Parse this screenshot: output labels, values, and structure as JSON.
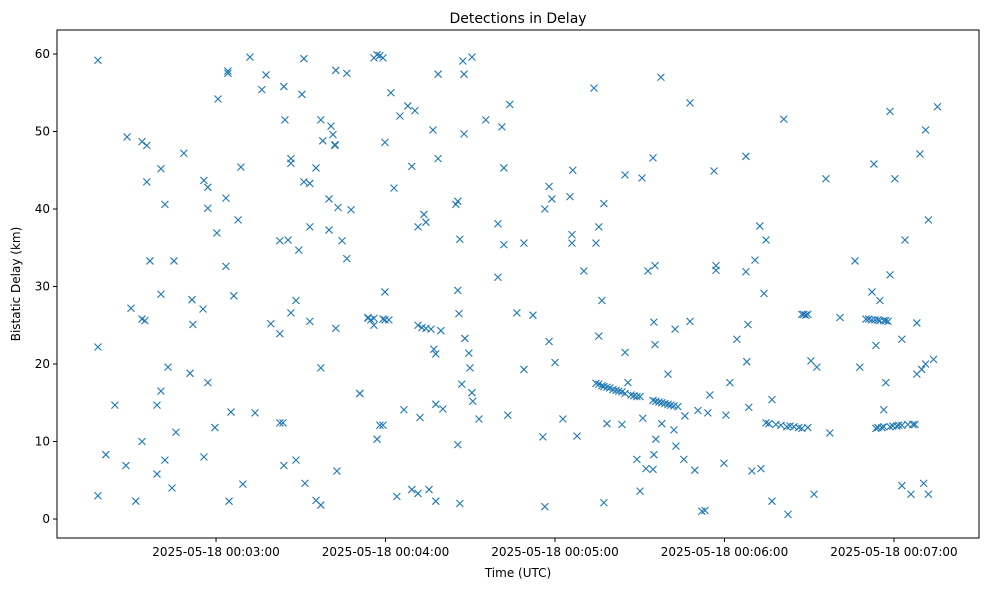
{
  "chart_data": {
    "type": "scatter",
    "title": "Detections in Delay",
    "xlabel": "Time (UTC)",
    "ylabel": "Bistatic Delay (km)",
    "x_units": "seconds after 2025-05-18 00:00:00 UTC",
    "xlim": [
      123.7,
      450.1
    ],
    "ylim": [
      -2.45,
      63.1
    ],
    "grid": false,
    "marker": "x",
    "color": "#1f77b4",
    "xticks": [
      {
        "value": 180,
        "label": "2025-05-18 00:03:00"
      },
      {
        "value": 240,
        "label": "2025-05-18 00:04:00"
      },
      {
        "value": 300,
        "label": "2025-05-18 00:05:00"
      },
      {
        "value": 360,
        "label": "2025-05-18 00:06:00"
      },
      {
        "value": 420,
        "label": "2025-05-18 00:07:00"
      }
    ],
    "yticks": [
      {
        "value": 0,
        "label": "0"
      },
      {
        "value": 10,
        "label": "10"
      },
      {
        "value": 20,
        "label": "20"
      },
      {
        "value": 30,
        "label": "30"
      },
      {
        "value": 40,
        "label": "40"
      },
      {
        "value": 50,
        "label": "50"
      },
      {
        "value": 60,
        "label": "60"
      }
    ],
    "groups": [
      [
        138.2,
        [
          22.2,
          3.0,
          59.2
        ]
      ],
      [
        141.0,
        [
          8.3
        ]
      ],
      [
        144.2,
        [
          14.7
        ]
      ],
      [
        148.1,
        [
          6.9
        ]
      ],
      [
        148.5,
        [
          49.3
        ]
      ],
      [
        149.9,
        [
          27.2
        ]
      ],
      [
        151.6,
        [
          2.3
        ]
      ],
      [
        153.8,
        [
          10.0,
          48.7,
          25.8
        ]
      ],
      [
        154.8,
        [
          25.6
        ]
      ],
      [
        155.5,
        [
          48.2,
          43.5
        ]
      ],
      [
        156.6,
        [
          33.3
        ]
      ],
      [
        159.1,
        [
          14.7,
          5.8
        ]
      ],
      [
        160.5,
        [
          45.2,
          29.0,
          16.5
        ]
      ],
      [
        161.9,
        [
          40.6,
          7.6
        ]
      ],
      [
        163.0,
        [
          19.6
        ]
      ],
      [
        164.4,
        [
          4.0
        ]
      ],
      [
        165.1,
        [
          33.3
        ]
      ],
      [
        165.8,
        [
          11.2
        ]
      ],
      [
        168.6,
        [
          47.2
        ]
      ],
      [
        170.8,
        [
          18.8
        ]
      ],
      [
        171.5,
        [
          28.3
        ]
      ],
      [
        171.8,
        [
          25.1
        ]
      ],
      [
        175.4,
        [
          27.1
        ]
      ],
      [
        175.7,
        [
          43.7,
          8.0
        ]
      ],
      [
        177.1,
        [
          40.1,
          42.8,
          17.6
        ]
      ],
      [
        179.6,
        [
          11.8
        ]
      ],
      [
        180.3,
        [
          36.9
        ]
      ],
      [
        180.7,
        [
          54.2
        ]
      ],
      [
        183.5,
        [
          32.6,
          41.4
        ]
      ],
      [
        184.2,
        [
          57.5,
          57.8
        ]
      ],
      [
        184.6,
        [
          2.3
        ]
      ],
      [
        185.3,
        [
          13.8
        ]
      ],
      [
        186.3,
        [
          28.8
        ]
      ],
      [
        187.8,
        [
          38.6
        ]
      ],
      [
        188.8,
        [
          45.4
        ]
      ],
      [
        189.5,
        [
          4.5
        ]
      ],
      [
        192.0,
        [
          59.6
        ]
      ],
      [
        193.8,
        [
          13.7
        ]
      ],
      [
        196.2,
        [
          55.4
        ]
      ],
      [
        197.7,
        [
          57.3
        ]
      ],
      [
        199.4,
        [
          25.2
        ]
      ],
      [
        202.6,
        [
          35.9,
          23.9,
          12.4
        ]
      ],
      [
        203.7,
        [
          12.4
        ]
      ],
      [
        204.0,
        [
          6.9,
          55.8
        ]
      ],
      [
        204.4,
        [
          51.5
        ]
      ],
      [
        205.5,
        [
          36.0
        ]
      ],
      [
        206.5,
        [
          46.5,
          45.9,
          26.6
        ]
      ],
      [
        208.3,
        [
          28.2,
          7.6
        ]
      ],
      [
        209.3,
        [
          34.7
        ]
      ],
      [
        210.4,
        [
          54.8
        ]
      ],
      [
        211.1,
        [
          59.4,
          43.5
        ]
      ],
      [
        211.5,
        [
          4.6
        ]
      ],
      [
        213.2,
        [
          43.3,
          37.7,
          25.5
        ]
      ],
      [
        215.4,
        [
          45.3,
          2.4
        ]
      ],
      [
        217.1,
        [
          51.5,
          19.5,
          1.8
        ]
      ],
      [
        217.8,
        [
          48.8
        ]
      ],
      [
        220.0,
        [
          41.3,
          37.3
        ]
      ],
      [
        220.7,
        [
          50.7
        ]
      ],
      [
        221.4,
        [
          49.6
        ]
      ],
      [
        222.1,
        [
          48.2,
          48.3
        ]
      ],
      [
        222.4,
        [
          24.6,
          57.9
        ]
      ],
      [
        222.8,
        [
          6.2
        ]
      ],
      [
        223.2,
        [
          40.2
        ]
      ],
      [
        224.6,
        [
          35.9
        ]
      ],
      [
        226.3,
        [
          33.6,
          57.5
        ]
      ],
      [
        227.8,
        [
          39.9
        ]
      ],
      [
        230.9,
        [
          16.2,
          16.2
        ]
      ],
      [
        233.8,
        [
          26.0,
          25.9
        ]
      ],
      [
        234.8,
        [
          25.7
        ]
      ],
      [
        235.9,
        [
          25.0,
          59.5,
          25.9
        ]
      ],
      [
        237.0,
        [
          10.3,
          59.9
        ]
      ],
      [
        238.0,
        [
          12.1,
          59.8
        ]
      ],
      [
        239.1,
        [
          59.5,
          12.1,
          25.8
        ]
      ],
      [
        239.8,
        [
          29.3,
          48.6,
          25.7
        ]
      ],
      [
        241.2,
        [
          25.7
        ]
      ],
      [
        241.9,
        [
          55.0
        ]
      ],
      [
        243.0,
        [
          42.7
        ]
      ],
      [
        244.0,
        [
          2.9
        ]
      ],
      [
        245.1,
        [
          52.0
        ]
      ],
      [
        246.5,
        [
          14.1
        ]
      ],
      [
        247.9,
        [
          53.3
        ]
      ],
      [
        249.3,
        [
          45.5,
          3.8
        ]
      ],
      [
        250.4,
        [
          52.7
        ]
      ],
      [
        251.5,
        [
          37.7,
          25.0,
          3.3
        ]
      ],
      [
        252.2,
        [
          13.1
        ]
      ],
      [
        252.9,
        [
          24.7
        ]
      ],
      [
        253.6,
        [
          39.3
        ]
      ],
      [
        254.3,
        [
          38.3,
          24.6
        ]
      ],
      [
        255.4,
        [
          3.8
        ]
      ],
      [
        256.1,
        [
          24.5
        ]
      ],
      [
        256.8,
        [
          50.2
        ]
      ],
      [
        257.1,
        [
          21.9
        ]
      ],
      [
        257.8,
        [
          21.3,
          14.8,
          2.3
        ]
      ],
      [
        258.6,
        [
          46.5,
          57.4
        ]
      ],
      [
        259.6,
        [
          24.3
        ]
      ],
      [
        260.3,
        [
          14.2
        ]
      ],
      [
        264.9,
        [
          40.6
        ]
      ],
      [
        265.6,
        [
          41.0,
          29.5,
          9.6
        ]
      ],
      [
        266.0,
        [
          26.5
        ]
      ],
      [
        266.3,
        [
          36.1,
          2.0
        ]
      ],
      [
        267.0,
        [
          17.4
        ]
      ],
      [
        267.4,
        [
          59.1
        ]
      ],
      [
        267.8,
        [
          57.4,
          49.7
        ]
      ],
      [
        268.1,
        [
          23.3
        ]
      ],
      [
        269.5,
        [
          21.4
        ]
      ],
      [
        269.9,
        [
          19.5
        ]
      ],
      [
        270.6,
        [
          59.6,
          16.3
        ]
      ],
      [
        270.9,
        [
          15.2
        ]
      ],
      [
        273.1,
        [
          12.9
        ]
      ],
      [
        275.5,
        [
          51.5
        ]
      ],
      [
        279.8,
        [
          31.2,
          38.1
        ]
      ],
      [
        281.2,
        [
          50.6
        ]
      ],
      [
        281.9,
        [
          45.3,
          35.4
        ]
      ],
      [
        283.3,
        [
          13.4
        ]
      ],
      [
        284.0,
        [
          53.5
        ]
      ],
      [
        286.5,
        [
          26.6
        ]
      ],
      [
        289.0,
        [
          19.3,
          35.6
        ]
      ],
      [
        292.2,
        [
          26.3
        ]
      ],
      [
        295.7,
        [
          10.6
        ]
      ],
      [
        296.4,
        [
          1.6,
          40.0
        ]
      ],
      [
        297.9,
        [
          42.9,
          22.9
        ]
      ],
      [
        298.9,
        [
          41.3
        ]
      ],
      [
        300.0,
        [
          20.2
        ]
      ],
      [
        302.8,
        [
          12.9
        ]
      ],
      [
        305.3,
        [
          41.6
        ]
      ],
      [
        306.0,
        [
          36.7,
          35.6
        ]
      ],
      [
        306.3,
        [
          45.0
        ]
      ],
      [
        307.8,
        [
          10.7
        ]
      ],
      [
        310.2,
        [
          32.0
        ]
      ],
      [
        313.8,
        [
          55.6
        ]
      ],
      [
        314.5,
        [
          35.6,
          17.5
        ]
      ],
      [
        315.5,
        [
          17.4,
          23.6,
          37.7
        ]
      ],
      [
        316.6,
        [
          17.2,
          28.2
        ]
      ],
      [
        317.3,
        [
          17.1,
          2.1,
          40.7
        ]
      ],
      [
        318.4,
        [
          17.0,
          12.3
        ]
      ],
      [
        319.4,
        [
          16.9
        ]
      ],
      [
        320.5,
        [
          16.7
        ]
      ],
      [
        321.6,
        [
          16.6
        ]
      ],
      [
        322.6,
        [
          16.5
        ]
      ],
      [
        323.7,
        [
          12.2,
          16.4
        ]
      ],
      [
        324.8,
        [
          16.2,
          21.5,
          44.4
        ]
      ],
      [
        325.8,
        [
          17.6
        ]
      ],
      [
        326.9,
        [
          16.0
        ]
      ],
      [
        327.9,
        [
          15.9
        ]
      ],
      [
        329.0,
        [
          15.8,
          7.7
        ]
      ],
      [
        330.1,
        [
          3.6,
          15.8
        ]
      ],
      [
        330.8,
        [
          44.0
        ]
      ],
      [
        331.1,
        [
          13.0
        ]
      ],
      [
        332.2,
        [
          6.5
        ]
      ],
      [
        332.9,
        [
          32.0
        ]
      ],
      [
        334.7,
        [
          46.6,
          15.3,
          6.4
        ]
      ],
      [
        335.0,
        [
          8.3,
          25.4
        ]
      ],
      [
        335.4,
        [
          32.7,
          22.5
        ]
      ],
      [
        335.7,
        [
          15.2,
          10.3
        ]
      ],
      [
        336.8,
        [
          15.1
        ]
      ],
      [
        337.5,
        [
          57.0
        ]
      ],
      [
        337.8,
        [
          15.0,
          12.3
        ]
      ],
      [
        338.9,
        [
          14.9
        ]
      ],
      [
        340.0,
        [
          14.8,
          18.7
        ]
      ],
      [
        341.0,
        [
          14.7
        ]
      ],
      [
        342.1,
        [
          11.5,
          14.6
        ]
      ],
      [
        342.5,
        [
          24.5
        ]
      ],
      [
        342.8,
        [
          9.4
        ]
      ],
      [
        343.5,
        [
          14.5
        ]
      ],
      [
        345.6,
        [
          7.7
        ]
      ],
      [
        346.0,
        [
          13.3
        ]
      ],
      [
        347.8,
        [
          53.7,
          25.5
        ]
      ],
      [
        349.5,
        [
          6.3
        ]
      ],
      [
        350.6,
        [
          14.0
        ]
      ],
      [
        352.0,
        [
          1.0
        ]
      ],
      [
        353.1,
        [
          1.1
        ]
      ],
      [
        354.1,
        [
          13.7
        ]
      ],
      [
        354.8,
        [
          16.0
        ]
      ],
      [
        356.3,
        [
          44.9
        ]
      ],
      [
        357.0,
        [
          32.7,
          32.1
        ]
      ],
      [
        359.8,
        [
          7.2
        ]
      ],
      [
        360.5,
        [
          13.4
        ]
      ],
      [
        361.9,
        [
          17.6
        ]
      ],
      [
        364.4,
        [
          23.2
        ]
      ],
      [
        367.6,
        [
          46.8,
          31.9
        ]
      ],
      [
        367.9,
        [
          20.3
        ]
      ],
      [
        368.3,
        [
          25.1
        ]
      ],
      [
        368.6,
        [
          14.4
        ]
      ],
      [
        369.7,
        [
          6.2
        ]
      ],
      [
        370.8,
        [
          33.4
        ]
      ],
      [
        372.5,
        [
          37.8
        ]
      ],
      [
        372.9,
        [
          6.5
        ]
      ],
      [
        374.0,
        [
          29.1
        ]
      ],
      [
        374.7,
        [
          12.4,
          36.0
        ]
      ],
      [
        375.7,
        [
          12.3
        ]
      ],
      [
        376.8,
        [
          2.3,
          15.4
        ]
      ],
      [
        378.2,
        [
          12.2
        ]
      ],
      [
        380.0,
        [
          12.1
        ]
      ],
      [
        381.0,
        [
          51.6
        ]
      ],
      [
        382.1,
        [
          11.9
        ]
      ],
      [
        382.5,
        [
          0.6
        ]
      ],
      [
        383.2,
        [
          12.0
        ]
      ],
      [
        384.6,
        [
          11.9
        ]
      ],
      [
        386.3,
        [
          11.8
        ]
      ],
      [
        387.4,
        [
          26.4,
          11.7
        ]
      ],
      [
        388.1,
        [
          26.4
        ]
      ],
      [
        388.8,
        [
          26.3
        ]
      ],
      [
        389.5,
        [
          11.8,
          26.4
        ]
      ],
      [
        390.6,
        [
          20.4
        ]
      ],
      [
        391.7,
        [
          3.2
        ]
      ],
      [
        392.7,
        [
          19.6
        ]
      ],
      [
        395.9,
        [
          43.9
        ]
      ],
      [
        397.3,
        [
          11.1
        ]
      ],
      [
        400.9,
        [
          26.0
        ]
      ],
      [
        406.2,
        [
          33.3
        ]
      ],
      [
        407.9,
        [
          19.6
        ]
      ],
      [
        410.1,
        [
          25.8
        ]
      ],
      [
        411.1,
        [
          25.8
        ]
      ],
      [
        412.2,
        [
          25.7,
          29.3
        ]
      ],
      [
        412.9,
        [
          45.8
        ]
      ],
      [
        413.3,
        [
          25.7
        ]
      ],
      [
        413.6,
        [
          22.4,
          11.7
        ]
      ],
      [
        414.3,
        [
          11.8,
          25.7
        ]
      ],
      [
        415.0,
        [
          25.6,
          28.2
        ]
      ],
      [
        415.7,
        [
          11.8
        ]
      ],
      [
        416.4,
        [
          25.6,
          11.9,
          14.1
        ]
      ],
      [
        417.1,
        [
          25.6,
          17.6
        ]
      ],
      [
        417.9,
        [
          25.5
        ]
      ],
      [
        418.6,
        [
          31.5,
          52.6,
          11.9
        ]
      ],
      [
        419.6,
        [
          12.0
        ]
      ],
      [
        420.3,
        [
          43.9
        ]
      ],
      [
        421.0,
        [
          12.0
        ]
      ],
      [
        421.7,
        [
          12.1
        ]
      ],
      [
        422.8,
        [
          4.3,
          12.1,
          23.2
        ]
      ],
      [
        423.9,
        [
          36.0
        ]
      ],
      [
        424.9,
        [
          12.2
        ]
      ],
      [
        426.0,
        [
          3.2
        ]
      ],
      [
        426.7,
        [
          12.2
        ]
      ],
      [
        427.4,
        [
          12.2
        ]
      ],
      [
        428.1,
        [
          25.3,
          18.7
        ]
      ],
      [
        429.2,
        [
          47.1
        ]
      ],
      [
        429.8,
        [
          19.3
        ]
      ],
      [
        430.5,
        [
          4.6
        ]
      ],
      [
        431.2,
        [
          50.2,
          20.0
        ]
      ],
      [
        432.2,
        [
          3.2,
          38.6
        ]
      ],
      [
        434.0,
        [
          20.6
        ]
      ],
      [
        435.4,
        [
          53.2
        ]
      ]
    ]
  }
}
